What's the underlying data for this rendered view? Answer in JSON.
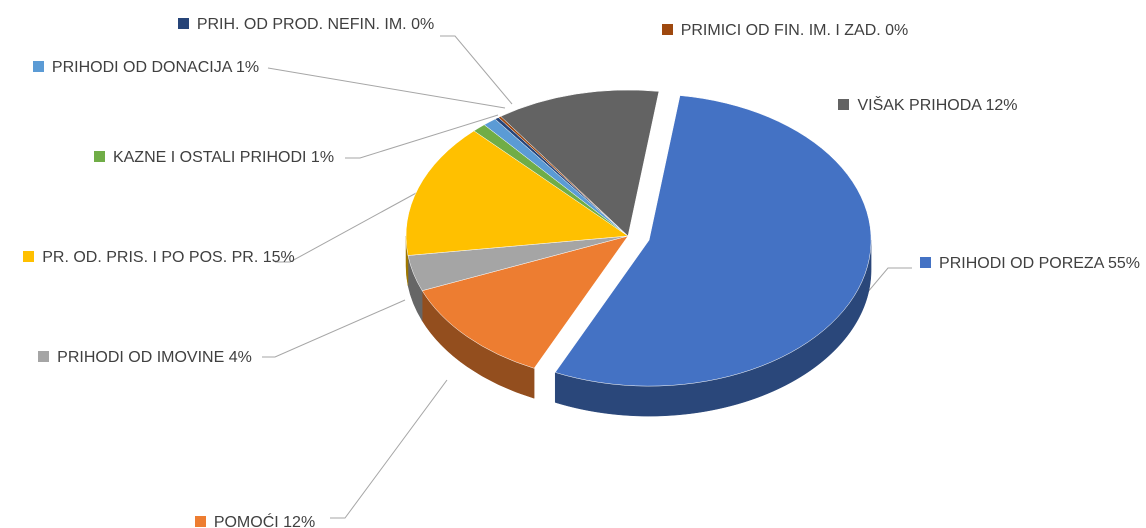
{
  "chart_data": {
    "type": "pie",
    "categories": [
      "PRIHODI OD POREZA",
      "POMOĆI",
      "PRIHODI OD IMOVINE",
      "PR. OD. PRIS. I PO POS. PR.",
      "KAZNE I OSTALI PRIHODI",
      "PRIHODI OD DONACIJA",
      "PRIH. OD PROD. NEFIN. IM.",
      "PRIMICI OD FIN. IM. I ZAD.",
      "VIŠAK PRIHODA"
    ],
    "values": [
      55,
      12,
      4,
      15,
      1,
      1,
      0.3,
      0.2,
      12
    ],
    "value_labels": [
      "55%",
      "12%",
      "4%",
      "15%",
      "1%",
      "1%",
      "0%",
      "0%",
      "12%"
    ],
    "colors": [
      "#4472c4",
      "#ed7d31",
      "#a5a5a5",
      "#ffc000",
      "#70ad47",
      "#5b9bd5",
      "#264478",
      "#9e480e",
      "#636363"
    ]
  }
}
